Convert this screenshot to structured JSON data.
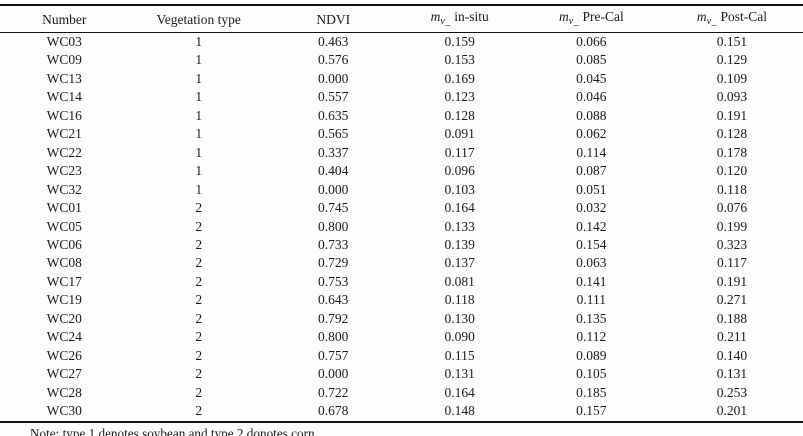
{
  "page": {
    "background": "#fdfdfd",
    "text_color": "#1b1b1b",
    "rule_color": "#121212"
  },
  "table": {
    "columns": [
      {
        "label": "Number"
      },
      {
        "label": "Vegetation type"
      },
      {
        "label": "NDVI"
      },
      {
        "label": "in-situ",
        "math_base": "m",
        "math_sub": "v_"
      },
      {
        "label": "Pre-Cal",
        "math_base": "m",
        "math_sub": "v_"
      },
      {
        "label": "Post-Cal",
        "math_base": "m",
        "math_sub": "v_"
      }
    ],
    "column_widths_percent": [
      16,
      17.5,
      16,
      15.5,
      17.3,
      17.7
    ],
    "rows": [
      [
        "WC03",
        "1",
        "0.463",
        "0.159",
        "0.066",
        "0.151"
      ],
      [
        "WC09",
        "1",
        "0.576",
        "0.153",
        "0.085",
        "0.129"
      ],
      [
        "WC13",
        "1",
        "0.000",
        "0.169",
        "0.045",
        "0.109"
      ],
      [
        "WC14",
        "1",
        "0.557",
        "0.123",
        "0.046",
        "0.093"
      ],
      [
        "WC16",
        "1",
        "0.635",
        "0.128",
        "0.088",
        "0.191"
      ],
      [
        "WC21",
        "1",
        "0.565",
        "0.091",
        "0.062",
        "0.128"
      ],
      [
        "WC22",
        "1",
        "0.337",
        "0.117",
        "0.114",
        "0.178"
      ],
      [
        "WC23",
        "1",
        "0.404",
        "0.096",
        "0.087",
        "0.120"
      ],
      [
        "WC32",
        "1",
        "0.000",
        "0.103",
        "0.051",
        "0.118"
      ],
      [
        "WC01",
        "2",
        "0.745",
        "0.164",
        "0.032",
        "0.076"
      ],
      [
        "WC05",
        "2",
        "0.800",
        "0.133",
        "0.142",
        "0.199"
      ],
      [
        "WC06",
        "2",
        "0.733",
        "0.139",
        "0.154",
        "0.323"
      ],
      [
        "WC08",
        "2",
        "0.729",
        "0.137",
        "0.063",
        "0.117"
      ],
      [
        "WC17",
        "2",
        "0.753",
        "0.081",
        "0.141",
        "0.191"
      ],
      [
        "WC19",
        "2",
        "0.643",
        "0.118",
        "0.111",
        "0.271"
      ],
      [
        "WC20",
        "2",
        "0.792",
        "0.130",
        "0.135",
        "0.188"
      ],
      [
        "WC24",
        "2",
        "0.800",
        "0.090",
        "0.112",
        "0.211"
      ],
      [
        "WC26",
        "2",
        "0.757",
        "0.115",
        "0.089",
        "0.140"
      ],
      [
        "WC27",
        "2",
        "0.000",
        "0.131",
        "0.105",
        "0.131"
      ],
      [
        "WC28",
        "2",
        "0.722",
        "0.164",
        "0.185",
        "0.253"
      ],
      [
        "WC30",
        "2",
        "0.678",
        "0.148",
        "0.157",
        "0.201"
      ]
    ],
    "note": "Note: type 1 denotes soybean and type 2 donotes corn."
  }
}
